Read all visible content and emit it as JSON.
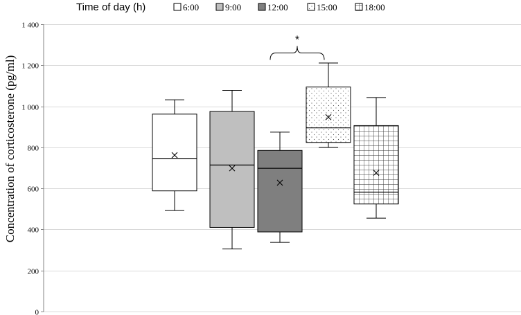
{
  "chart_data": {
    "type": "box",
    "ylabel": "Concentration of corticosterone (pg/ml)",
    "ylim": [
      0,
      1400
    ],
    "yticks": [
      0,
      200,
      400,
      600,
      800,
      1000,
      1200,
      1400
    ],
    "ytick_labels": [
      "0",
      "200",
      "400",
      "600",
      "800",
      "1 000",
      "1 200",
      "1 400"
    ],
    "grid": true,
    "legend": {
      "title": "Time of day (h)",
      "placement": "top",
      "entries": [
        "6:00",
        "9:00",
        "12:00",
        "15:00",
        "18:00"
      ]
    },
    "series": [
      {
        "name": "6:00",
        "fill": "#ffffff",
        "pattern": "none",
        "whisker_low": 492,
        "q1": 588,
        "median": 746,
        "mean": 762,
        "q3": 962,
        "whisker_high": 1032
      },
      {
        "name": "9:00",
        "fill": "#bfbfbf",
        "pattern": "none",
        "whisker_low": 305,
        "q1": 410,
        "median": 714,
        "mean": 698,
        "q3": 975,
        "whisker_high": 1078
      },
      {
        "name": "12:00",
        "fill": "#7f7f7f",
        "pattern": "none",
        "whisker_low": 337,
        "q1": 388,
        "median": 698,
        "mean": 628,
        "q3": 785,
        "whisker_high": 874
      },
      {
        "name": "15:00",
        "fill": "#ffffff",
        "pattern": "dots",
        "whisker_low": 800,
        "q1": 824,
        "median": 895,
        "mean": 947,
        "q3": 1094,
        "whisker_high": 1211
      },
      {
        "name": "18:00",
        "fill": "#ffffff",
        "pattern": "grid",
        "whisker_low": 455,
        "q1": 524,
        "median": 582,
        "mean": 676,
        "q3": 906,
        "whisker_high": 1043
      }
    ],
    "annotations": [
      {
        "text": "*",
        "type": "bracket",
        "between": [
          "12:00",
          "15:00"
        ],
        "level": 1260
      }
    ]
  }
}
